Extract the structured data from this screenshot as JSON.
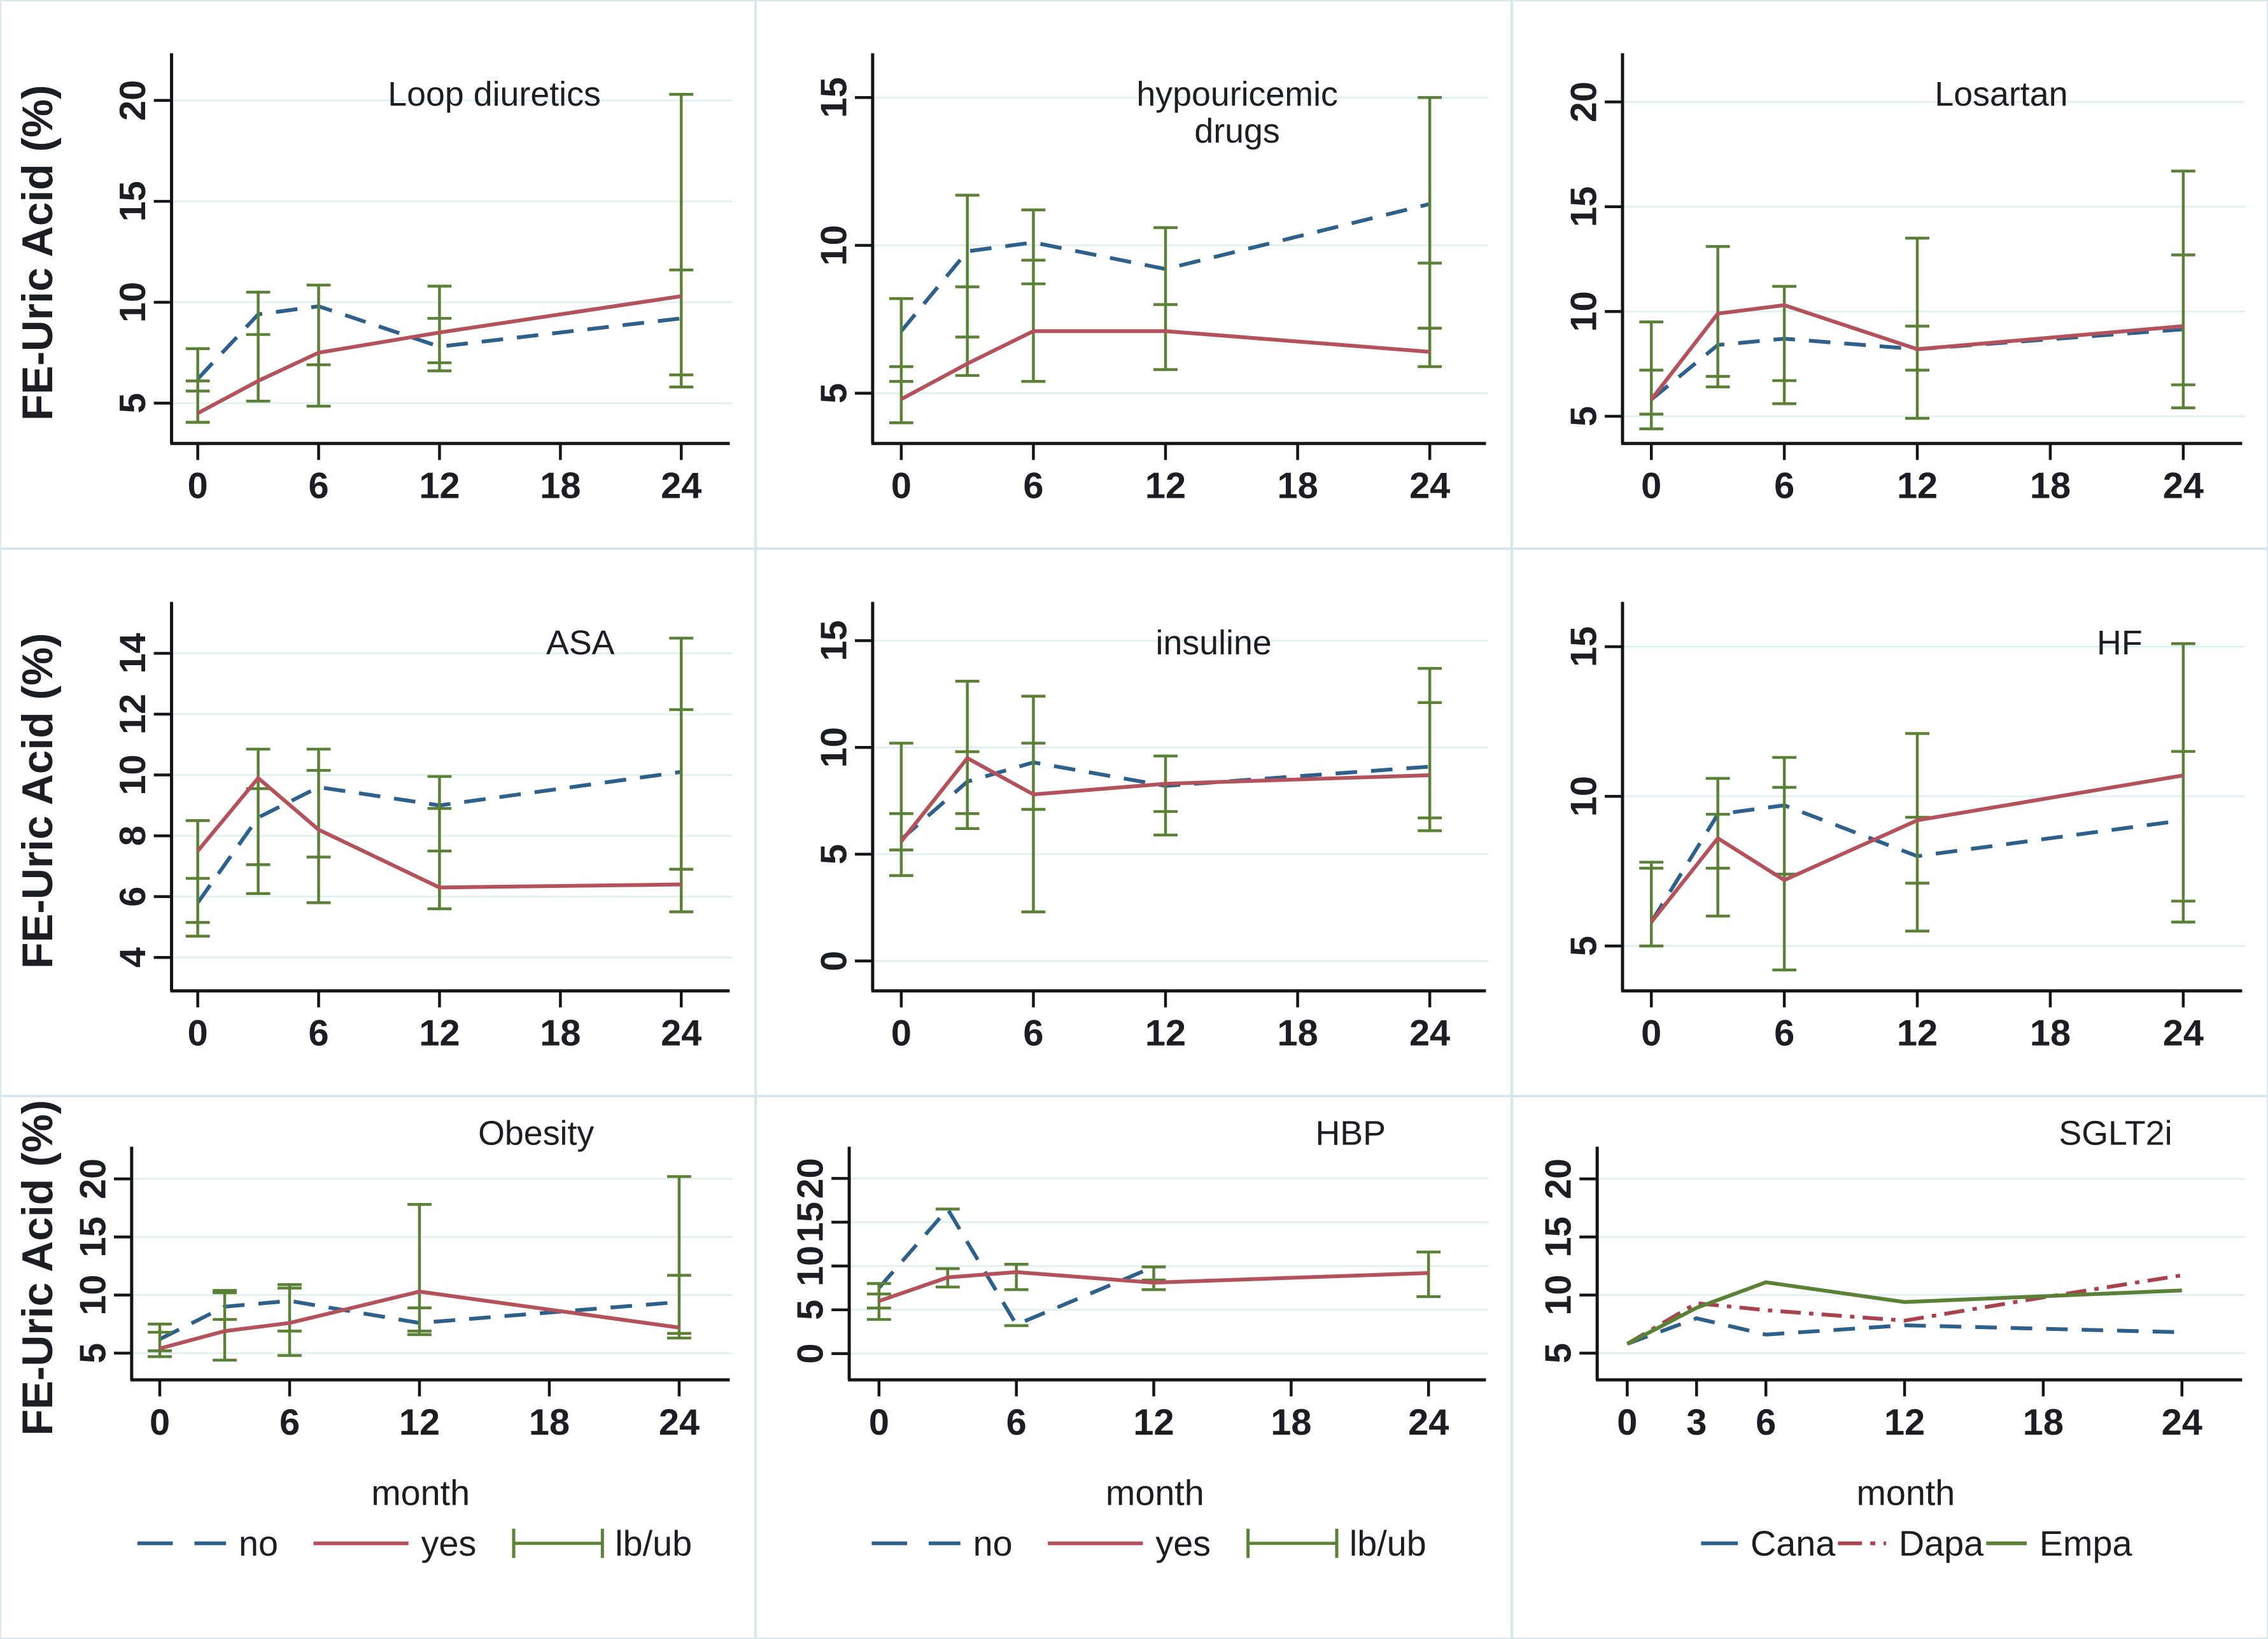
{
  "figure_title": "FE-Uric Acid (%) over months by subgroup",
  "labels": {
    "ylabel": "FE-Uric Acid (%)",
    "xlabel": "month"
  },
  "styles": {
    "background": "#ffffff",
    "panel_border": "#d8e7ee",
    "grid_color": "#e2f0f2",
    "axis_color": "#141519",
    "text_color": "#1c1e24",
    "colors": {
      "no": "#2e608c",
      "yes": "#b4525c",
      "lbub": "#5b8136",
      "cana": "#2e608c",
      "dapa": "#a8434e",
      "empa": "#5b8136"
    }
  },
  "legends": {
    "yn": [
      {
        "label": "no",
        "style": "dash",
        "color_key": "no"
      },
      {
        "label": "yes",
        "style": "solid_long",
        "color_key": "yes"
      },
      {
        "label": "lb/ub",
        "style": "errbar",
        "color_key": "lbub"
      }
    ],
    "sglt": [
      {
        "label": "Cana",
        "style": "dash_short",
        "color_key": "cana"
      },
      {
        "label": "Dapa",
        "style": "dashdot",
        "color_key": "dapa"
      },
      {
        "label": "Empa",
        "style": "solid_short",
        "color_key": "empa"
      }
    ]
  },
  "chart_data": [
    {
      "type": "line",
      "id": "loop-diuretics",
      "row": 1,
      "col": 1,
      "title_lines": [
        "Loop diuretics"
      ],
      "title_frac": 0.6,
      "show_ylabel": true,
      "show_xlabel": false,
      "legend": null,
      "x": [
        0,
        3,
        6,
        12,
        24
      ],
      "xticks": [
        0,
        6,
        12,
        18,
        24
      ],
      "xlim": [
        -1.3,
        25.4
      ],
      "yticks": [
        5,
        10,
        15,
        20
      ],
      "ylim": [
        3.0,
        21.9
      ],
      "grid": true,
      "ylabel": "FE-Uric Acid (%)",
      "series": [
        {
          "name": "no",
          "style": "dash",
          "color_key": "no",
          "values": [
            6.2,
            9.4,
            9.8,
            7.8,
            9.2
          ]
        },
        {
          "name": "yes",
          "style": "solid",
          "color_key": "yes",
          "values": [
            4.5,
            6.1,
            7.5,
            8.5,
            10.3
          ]
        }
      ],
      "error_bars": {
        "color_key": "lbub",
        "items": [
          {
            "x": 0,
            "ticks": [
              4.05,
              5.6,
              6.1,
              7.7
            ]
          },
          {
            "x": 3,
            "ticks": [
              5.1,
              8.4,
              10.5
            ]
          },
          {
            "x": 6,
            "ticks": [
              4.85,
              6.9,
              10.85
            ]
          },
          {
            "x": 12,
            "ticks": [
              6.6,
              7.0,
              9.2,
              10.8
            ]
          },
          {
            "x": 24,
            "ticks": [
              5.8,
              6.4,
              11.6,
              20.3
            ]
          }
        ]
      }
    },
    {
      "type": "line",
      "id": "hypouricemic-drugs",
      "row": 1,
      "col": 2,
      "title_lines": [
        "hypouricemic",
        "drugs"
      ],
      "title_frac": 0.62,
      "show_ylabel": false,
      "show_xlabel": false,
      "legend": null,
      "x": [
        0,
        3,
        6,
        12,
        24
      ],
      "xticks": [
        0,
        6,
        12,
        18,
        24
      ],
      "xlim": [
        -1.3,
        25.4
      ],
      "yticks": [
        5,
        10,
        15
      ],
      "ylim": [
        3.3,
        16.2
      ],
      "grid": true,
      "series": [
        {
          "name": "no",
          "style": "dash",
          "color_key": "no",
          "values": [
            7.1,
            9.8,
            10.1,
            9.2,
            11.4
          ]
        },
        {
          "name": "yes",
          "style": "solid",
          "color_key": "yes",
          "values": [
            4.8,
            6.0,
            7.1,
            7.1,
            6.4
          ]
        }
      ],
      "error_bars": {
        "color_key": "lbub",
        "items": [
          {
            "x": 0,
            "ticks": [
              4.0,
              5.4,
              5.9,
              8.2
            ]
          },
          {
            "x": 3,
            "ticks": [
              5.6,
              6.9,
              8.6,
              11.7
            ]
          },
          {
            "x": 6,
            "ticks": [
              5.4,
              8.7,
              9.5,
              11.2
            ]
          },
          {
            "x": 12,
            "ticks": [
              5.8,
              8.0,
              10.6
            ]
          },
          {
            "x": 24,
            "ticks": [
              5.9,
              7.2,
              9.4,
              15.0
            ]
          }
        ]
      }
    },
    {
      "type": "line",
      "id": "losartan",
      "row": 1,
      "col": 3,
      "title_lines": [
        "Losartan"
      ],
      "title_frac": 0.64,
      "show_ylabel": false,
      "show_xlabel": false,
      "legend": null,
      "x": [
        0,
        3,
        6,
        12,
        24
      ],
      "xticks": [
        0,
        6,
        12,
        18,
        24
      ],
      "xlim": [
        -1.3,
        25.4
      ],
      "yticks": [
        5,
        10,
        15,
        20
      ],
      "ylim": [
        3.7,
        21.9
      ],
      "grid": true,
      "series": [
        {
          "name": "no",
          "style": "dash",
          "color_key": "no",
          "values": [
            5.8,
            8.4,
            8.7,
            8.2,
            9.15
          ]
        },
        {
          "name": "yes",
          "style": "solid",
          "color_key": "yes",
          "values": [
            5.8,
            9.9,
            10.3,
            8.2,
            9.3
          ]
        }
      ],
      "error_bars": {
        "color_key": "lbub",
        "items": [
          {
            "x": 0,
            "ticks": [
              4.4,
              5.1,
              7.2,
              9.5
            ]
          },
          {
            "x": 3,
            "ticks": [
              6.4,
              6.9,
              13.1
            ]
          },
          {
            "x": 6,
            "ticks": [
              5.6,
              6.7,
              11.2
            ]
          },
          {
            "x": 12,
            "ticks": [
              4.9,
              7.2,
              9.3,
              13.5
            ]
          },
          {
            "x": 24,
            "ticks": [
              5.4,
              6.5,
              12.7,
              16.7
            ]
          }
        ]
      }
    },
    {
      "type": "line",
      "id": "asa",
      "row": 2,
      "col": 1,
      "title_lines": [
        "ASA"
      ],
      "title_frac": 0.76,
      "show_ylabel": true,
      "show_xlabel": false,
      "legend": null,
      "x": [
        0,
        3,
        6,
        12,
        24
      ],
      "xticks": [
        0,
        6,
        12,
        18,
        24
      ],
      "xlim": [
        -1.3,
        25.4
      ],
      "yticks": [
        4,
        6,
        8,
        10,
        12,
        14
      ],
      "ylim": [
        2.9,
        15.4
      ],
      "grid": true,
      "ylabel": "FE-Uric Acid (%)",
      "series": [
        {
          "name": "no",
          "style": "dash",
          "color_key": "no",
          "values": [
            5.8,
            8.6,
            9.6,
            9.0,
            10.1
          ]
        },
        {
          "name": "yes",
          "style": "solid",
          "color_key": "yes",
          "values": [
            7.5,
            9.9,
            8.2,
            6.3,
            6.4
          ]
        }
      ],
      "error_bars": {
        "color_key": "lbub",
        "items": [
          {
            "x": 0,
            "ticks": [
              4.7,
              5.15,
              6.6,
              8.5
            ]
          },
          {
            "x": 3,
            "ticks": [
              6.1,
              7.05,
              9.55,
              10.85
            ]
          },
          {
            "x": 6,
            "ticks": [
              5.8,
              7.3,
              10.15,
              10.85
            ]
          },
          {
            "x": 12,
            "ticks": [
              5.6,
              7.5,
              8.9,
              9.95
            ]
          },
          {
            "x": 24,
            "ticks": [
              5.5,
              6.9,
              12.15,
              14.5
            ]
          }
        ]
      }
    },
    {
      "type": "line",
      "id": "insuline",
      "row": 2,
      "col": 2,
      "title_lines": [
        "insuline"
      ],
      "title_frac": 0.58,
      "show_ylabel": false,
      "show_xlabel": false,
      "legend": null,
      "x": [
        0,
        3,
        6,
        12,
        24
      ],
      "xticks": [
        0,
        6,
        12,
        18,
        24
      ],
      "xlim": [
        -1.3,
        25.4
      ],
      "yticks": [
        0,
        5,
        10,
        15
      ],
      "ylim": [
        -1.4,
        16.4
      ],
      "grid": true,
      "series": [
        {
          "name": "no",
          "style": "dash",
          "color_key": "no",
          "values": [
            5.7,
            8.4,
            9.3,
            8.2,
            9.1
          ]
        },
        {
          "name": "yes",
          "style": "solid",
          "color_key": "yes",
          "values": [
            5.6,
            9.5,
            7.8,
            8.3,
            8.7
          ]
        }
      ],
      "error_bars": {
        "color_key": "lbub",
        "items": [
          {
            "x": 0,
            "ticks": [
              4.0,
              5.2,
              6.9,
              10.2
            ]
          },
          {
            "x": 3,
            "ticks": [
              6.2,
              6.9,
              9.8,
              13.1
            ]
          },
          {
            "x": 6,
            "ticks": [
              2.3,
              7.1,
              10.2,
              12.4
            ]
          },
          {
            "x": 12,
            "ticks": [
              5.9,
              7.0,
              9.6
            ]
          },
          {
            "x": 24,
            "ticks": [
              6.1,
              6.7,
              12.1,
              13.7
            ]
          }
        ]
      }
    },
    {
      "type": "line",
      "id": "hf",
      "row": 2,
      "col": 3,
      "title_lines": [
        "HF"
      ],
      "title_frac": 0.84,
      "show_ylabel": false,
      "show_xlabel": false,
      "legend": null,
      "x": [
        0,
        3,
        6,
        12,
        24
      ],
      "xticks": [
        0,
        6,
        12,
        18,
        24
      ],
      "xlim": [
        -1.3,
        25.4
      ],
      "yticks": [
        5,
        10,
        15
      ],
      "ylim": [
        3.5,
        16.2
      ],
      "grid": true,
      "series": [
        {
          "name": "no",
          "style": "dash",
          "color_key": "no",
          "values": [
            5.8,
            9.4,
            9.7,
            8.0,
            9.2
          ]
        },
        {
          "name": "yes",
          "style": "solid",
          "color_key": "yes",
          "values": [
            5.8,
            8.6,
            7.2,
            9.2,
            10.7
          ]
        }
      ],
      "error_bars": {
        "color_key": "lbub",
        "items": [
          {
            "x": 0,
            "ticks": [
              5.0,
              7.6,
              7.8
            ]
          },
          {
            "x": 3,
            "ticks": [
              6.0,
              7.6,
              9.4,
              10.6
            ]
          },
          {
            "x": 6,
            "ticks": [
              4.2,
              7.4,
              10.3,
              11.3
            ]
          },
          {
            "x": 12,
            "ticks": [
              5.5,
              7.1,
              9.3,
              12.1
            ]
          },
          {
            "x": 24,
            "ticks": [
              5.8,
              6.5,
              11.5,
              15.1
            ]
          }
        ]
      }
    },
    {
      "type": "line",
      "id": "obesity",
      "row": 3,
      "col": 1,
      "title_lines": [
        "Obesity"
      ],
      "title_frac": 0.7,
      "show_ylabel": true,
      "show_xlabel": true,
      "legend": "yn",
      "x": [
        0,
        3,
        6,
        12,
        24
      ],
      "xticks": [
        0,
        6,
        12,
        18,
        24
      ],
      "xlim": [
        -1.3,
        25.4
      ],
      "yticks": [
        5,
        10,
        15,
        20
      ],
      "ylim": [
        2.7,
        22.0
      ],
      "grid": true,
      "ylabel": "FE-Uric Acid (%)",
      "xlabel": "month",
      "series": [
        {
          "name": "no",
          "style": "dash",
          "color_key": "no",
          "values": [
            6.2,
            9.0,
            9.5,
            7.6,
            9.4
          ]
        },
        {
          "name": "yes",
          "style": "solid",
          "color_key": "yes",
          "values": [
            5.4,
            6.9,
            7.6,
            10.3,
            7.2
          ]
        }
      ],
      "error_bars": {
        "color_key": "lbub",
        "items": [
          {
            "x": 0,
            "ticks": [
              4.7,
              5.2,
              6.8,
              7.5
            ]
          },
          {
            "x": 3,
            "ticks": [
              4.4,
              7.9,
              10.2,
              10.4
            ]
          },
          {
            "x": 6,
            "ticks": [
              4.8,
              6.9,
              10.6,
              10.9
            ]
          },
          {
            "x": 12,
            "ticks": [
              6.6,
              6.9,
              8.9,
              17.8
            ]
          },
          {
            "x": 24,
            "ticks": [
              6.3,
              6.7,
              11.7,
              20.2
            ]
          }
        ]
      }
    },
    {
      "type": "line",
      "id": "hbp",
      "row": 3,
      "col": 2,
      "title_lines": [
        "HBP"
      ],
      "title_frac": 0.82,
      "show_ylabel": false,
      "show_xlabel": true,
      "legend": "yn",
      "x": [
        0,
        3,
        6,
        12,
        24
      ],
      "xticks": [
        0,
        6,
        12,
        18,
        24
      ],
      "xlim": [
        -1.3,
        25.4
      ],
      "yticks": [
        0,
        5,
        10,
        15,
        20
      ],
      "ylim": [
        -3.0,
        22.6
      ],
      "grid": true,
      "xlabel": "month",
      "series": [
        {
          "name": "no",
          "style": "dash",
          "color_key": "no",
          "values": [
            7.5,
            16.5,
            3.3,
            9.9,
            null
          ]
        },
        {
          "name": "yes",
          "style": "solid",
          "color_key": "yes",
          "values": [
            6.0,
            8.7,
            9.3,
            8.1,
            9.2
          ]
        }
      ],
      "error_bars": {
        "color_key": "lbub",
        "items": [
          {
            "x": 0,
            "ticks": [
              3.9,
              5.2,
              6.8,
              8.0
            ]
          },
          {
            "x": 3,
            "ticks": [
              7.6,
              9.7
            ]
          },
          {
            "x": 3,
            "ticks": [
              16.5
            ]
          },
          {
            "x": 6,
            "ticks": [
              7.3,
              10.2
            ]
          },
          {
            "x": 6,
            "ticks": [
              3.2
            ]
          },
          {
            "x": 12,
            "ticks": [
              7.3,
              8.4,
              9.9
            ]
          },
          {
            "x": 24,
            "ticks": [
              6.5,
              11.6
            ]
          }
        ]
      }
    },
    {
      "type": "line",
      "id": "sglt2i",
      "row": 3,
      "col": 3,
      "title_lines": [
        "SGLT2i"
      ],
      "title_frac": 0.84,
      "show_ylabel": false,
      "show_xlabel": true,
      "legend": "sglt",
      "x": [
        0,
        3,
        6,
        12,
        18,
        24
      ],
      "xticks": [
        0,
        3,
        6,
        12,
        18,
        24
      ],
      "xlim": [
        -1.3,
        25.4
      ],
      "yticks": [
        5,
        10,
        15,
        20
      ],
      "ylim": [
        2.7,
        22.0
      ],
      "grid": true,
      "xlabel": "month",
      "series": [
        {
          "name": "Cana",
          "style": "dash",
          "color_key": "cana",
          "values": [
            5.8,
            8.0,
            6.6,
            7.4,
            7.1,
            6.8
          ]
        },
        {
          "name": "Dapa",
          "style": "dashdot",
          "color_key": "dapa",
          "values": [
            5.8,
            9.3,
            8.7,
            7.8,
            9.8,
            11.7
          ]
        },
        {
          "name": "Empa",
          "style": "solid",
          "color_key": "empa",
          "values": [
            5.8,
            8.9,
            11.1,
            9.4,
            9.9,
            10.4
          ]
        }
      ],
      "error_bars": {
        "color_key": "lbub",
        "items": []
      }
    }
  ]
}
